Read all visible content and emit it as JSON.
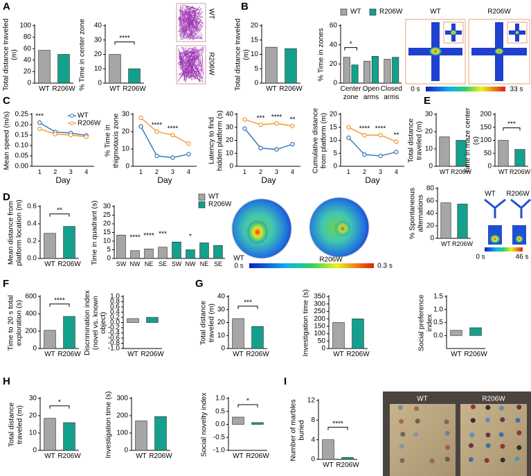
{
  "panel_labels": [
    "A",
    "B",
    "C",
    "D",
    "E",
    "F",
    "G",
    "H",
    "I"
  ],
  "images": {
    "open_field": [
      "WT",
      "R206W"
    ],
    "plus_maze": [
      "WT",
      "R206W"
    ],
    "plus_maze_scale": [
      "0 s",
      "33 s"
    ],
    "water_maze": [
      "WT",
      "R206W"
    ],
    "water_maze_scale": [
      "0 s",
      "0.3 s"
    ],
    "y_maze": [
      "WT",
      "R206W"
    ],
    "y_maze_scale": [
      "0 s",
      "46 s"
    ],
    "marbles": [
      "WT",
      "R206W"
    ]
  },
  "chart_data": [
    {
      "type": "bar",
      "ylabel": "Total distance traveled (m)",
      "categories": [
        "WT",
        "R206W"
      ],
      "values": [
        57,
        50
      ],
      "colors": [
        "#a6a6a6",
        "#14a08c"
      ],
      "ylim": [
        0,
        100
      ],
      "yticks": [
        0,
        20,
        40,
        60,
        80,
        100
      ]
    },
    {
      "type": "bar",
      "ylabel": "% Time in center zone",
      "categories": [
        "WT",
        "R206W"
      ],
      "values": [
        20,
        10
      ],
      "colors": [
        "#a6a6a6",
        "#14a08c"
      ],
      "ylim": [
        0,
        40
      ],
      "yticks": [
        0,
        10,
        20,
        30,
        40
      ],
      "bracket": "****"
    },
    {
      "type": "bar",
      "ylabel": "Total distance traveled (m)",
      "categories": [
        "WT",
        "R206W"
      ],
      "values": [
        12.5,
        12
      ],
      "colors": [
        "#a6a6a6",
        "#14a08c"
      ],
      "ylim": [
        0,
        20
      ],
      "yticks": [
        0,
        5,
        10,
        15,
        20
      ]
    },
    {
      "type": "bar",
      "ylabel": "% Time in zones",
      "categories": [
        "Center zone",
        "Open arms",
        "Closed arms"
      ],
      "series": [
        {
          "name": "WT",
          "color": "#a6a6a6",
          "values": [
            27,
            23,
            25
          ]
        },
        {
          "name": "R206W",
          "color": "#14a08c",
          "values": [
            19,
            28,
            27
          ]
        }
      ],
      "ylim": [
        0,
        60
      ],
      "yticks": [
        0,
        20,
        40,
        60
      ],
      "annotations": [
        "*",
        null,
        null
      ],
      "legend": "top"
    },
    {
      "type": "line",
      "ylabel": "Mean speed (m/s)",
      "xlabel": "Day",
      "categories": [
        "1",
        "2",
        "3",
        "4"
      ],
      "series": [
        {
          "name": "WT",
          "color": "#2e75b6",
          "values": [
            0.21,
            0.165,
            0.16,
            0.148
          ]
        },
        {
          "name": "R206W",
          "color": "#f0962e",
          "values": [
            0.18,
            0.155,
            0.15,
            0.142
          ]
        }
      ],
      "ylim": [
        0,
        0.25
      ],
      "yticks": [
        {
          "value": 0,
          "label": "0.00"
        },
        0.05,
        {
          "value": 0.1,
          "label": "0.10"
        },
        0.15,
        {
          "value": 0.2,
          "label": "0.20"
        },
        0.25
      ],
      "annotations": [
        "***",
        null,
        null,
        null
      ],
      "legend": "upper right"
    },
    {
      "type": "line",
      "ylabel": "% Time in thigmotaxis zone",
      "xlabel": "Day",
      "categories": [
        "1",
        "2",
        "3",
        "4"
      ],
      "series": [
        {
          "name": "WT",
          "color": "#2e75b6",
          "values": [
            23,
            6,
            5,
            7
          ]
        },
        {
          "name": "R206W",
          "color": "#f0962e",
          "values": [
            28,
            20,
            18,
            13
          ]
        }
      ],
      "ylim": [
        0,
        30
      ],
      "yticks": [
        0,
        10,
        20,
        30
      ],
      "annotations": [
        null,
        "****",
        "****",
        null
      ]
    },
    {
      "type": "line",
      "ylabel": "Latency to find hidden platform (s)",
      "xlabel": "Day",
      "categories": [
        "1",
        "2",
        "3",
        "4"
      ],
      "series": [
        {
          "name": "WT",
          "color": "#2e75b6",
          "values": [
            29,
            14,
            13,
            17
          ]
        },
        {
          "name": "R206W",
          "color": "#f0962e",
          "values": [
            36,
            32,
            33,
            31
          ]
        }
      ],
      "ylim": [
        0,
        40
      ],
      "yticks": [
        0,
        10,
        20,
        30,
        40
      ],
      "annotations": [
        null,
        "***",
        "****",
        "**"
      ]
    },
    {
      "type": "line",
      "ylabel": "Cumulative distance from platform (m)",
      "xlabel": "Day",
      "categories": [
        "1",
        "2",
        "3",
        "4"
      ],
      "series": [
        {
          "name": "WT",
          "color": "#2e75b6",
          "values": [
            11,
            4.5,
            4,
            5.5
          ]
        },
        {
          "name": "R206W",
          "color": "#f0962e",
          "values": [
            15,
            12,
            12,
            9.5
          ]
        }
      ],
      "ylim": [
        0,
        20
      ],
      "yticks": [
        0,
        5,
        10,
        15,
        20
      ],
      "annotations": [
        null,
        "****",
        "****",
        "**"
      ]
    },
    {
      "type": "bar",
      "ylabel": "Total distance traveled (m)",
      "categories": [
        "WT",
        "R206W"
      ],
      "values": [
        17,
        15
      ],
      "colors": [
        "#a6a6a6",
        "#14a08c"
      ],
      "ylim": [
        0,
        30
      ],
      "yticks": [
        0,
        10,
        20,
        30
      ]
    },
    {
      "type": "bar",
      "ylabel": "Time in maze center (s)",
      "categories": [
        "WT",
        "R206W"
      ],
      "values": [
        100,
        65
      ],
      "colors": [
        "#a6a6a6",
        "#14a08c"
      ],
      "ylim": [
        0,
        200
      ],
      "yticks": [
        0,
        50,
        100,
        150,
        200
      ],
      "bracket": "***"
    },
    {
      "type": "bar",
      "ylabel": "Mean distance from platform location (m)",
      "categories": [
        "WT",
        "R206W"
      ],
      "values": [
        0.29,
        0.37
      ],
      "colors": [
        "#a6a6a6",
        "#14a08c"
      ],
      "ylim": [
        0,
        0.6
      ],
      "yticks": [
        {
          "value": 0,
          "label": "0.0"
        },
        0.2,
        0.4,
        0.6
      ],
      "bracket": "**"
    },
    {
      "type": "bar",
      "ylabel": "Time in quadrant (s)",
      "categories": [
        "SW",
        "NW",
        "NE",
        "SE",
        "SW",
        "NW",
        "NE",
        "SE"
      ],
      "series": [
        {
          "name": "WT",
          "color": "#a6a6a6",
          "values": [
            13.5,
            4.5,
            5.5,
            6.5,
            null,
            null,
            null,
            null
          ]
        },
        {
          "name": "R206W",
          "color": "#14a08c",
          "values": [
            null,
            null,
            null,
            null,
            9.5,
            5,
            9,
            7.5
          ]
        }
      ],
      "ylim": [
        0,
        30
      ],
      "yticks": [
        0,
        5,
        10,
        15,
        20,
        25,
        30
      ],
      "annotations": [
        null,
        "****",
        "****",
        "***",
        null,
        "*",
        null,
        null
      ],
      "legend": "upper right"
    },
    {
      "type": "bar",
      "ylabel": "% Spontaneous alternations",
      "categories": [
        "WT",
        "R206W"
      ],
      "values": [
        57,
        55
      ],
      "colors": [
        "#a6a6a6",
        "#14a08c"
      ],
      "ylim": [
        0,
        80
      ],
      "yticks": [
        0,
        20,
        40,
        60,
        80
      ]
    },
    {
      "type": "bar",
      "ylabel": "Time to 20 s total exploration (s)",
      "categories": [
        "WT",
        "R206W"
      ],
      "values": [
        210,
        370
      ],
      "colors": [
        "#a6a6a6",
        "#14a08c"
      ],
      "ylim": [
        0,
        600
      ],
      "yticks": [
        0,
        200,
        400,
        600
      ],
      "bracket": "****"
    },
    {
      "type": "bar",
      "ylabel": "Discrimination index (novel vs. known object)",
      "categories": [
        "WT",
        "R206W"
      ],
      "values": [
        0.15,
        0.2
      ],
      "colors": [
        "#a6a6a6",
        "#14a08c"
      ],
      "ylim": [
        -1,
        1
      ],
      "yticks": [
        {
          "value": -1,
          "label": "-1.0"
        },
        -0.8,
        -0.6,
        -0.4,
        -0.2,
        {
          "value": 0,
          "label": "0.0"
        },
        0.2,
        0.4,
        0.6,
        0.8,
        {
          "value": 1,
          "label": "1.0"
        }
      ]
    },
    {
      "type": "bar",
      "ylabel": "Total distance traveled (m)",
      "categories": [
        "WT",
        "R206W"
      ],
      "values": [
        23,
        17
      ],
      "colors": [
        "#a6a6a6",
        "#14a08c"
      ],
      "ylim": [
        0,
        40
      ],
      "yticks": [
        0,
        10,
        20,
        30,
        40
      ],
      "bracket": "***"
    },
    {
      "type": "bar",
      "ylabel": "Investigation time (s)",
      "categories": [
        "WT",
        "R206W"
      ],
      "values": [
        175,
        200
      ],
      "colors": [
        "#a6a6a6",
        "#14a08c"
      ],
      "ylim": [
        0,
        350
      ],
      "yticks": [
        0,
        50,
        100,
        150,
        200,
        250,
        300,
        350
      ]
    },
    {
      "type": "bar",
      "ylabel": "Social preference index",
      "categories": [
        "WT",
        "R206W"
      ],
      "values": [
        0.2,
        0.3
      ],
      "colors": [
        "#a6a6a6",
        "#14a08c"
      ],
      "ylim": [
        -0.5,
        1.5
      ],
      "yticks": [
        {
          "value": 0,
          "label": "0.0"
        },
        0.5,
        {
          "value": 1,
          "label": "1.0"
        },
        1.5
      ]
    },
    {
      "type": "bar",
      "ylabel": "Total distance traveled (m)",
      "categories": [
        "WT",
        "R206W"
      ],
      "values": [
        18.5,
        16
      ],
      "colors": [
        "#a6a6a6",
        "#14a08c"
      ],
      "ylim": [
        0,
        30
      ],
      "yticks": [
        0,
        10,
        20,
        30
      ],
      "bracket": "*"
    },
    {
      "type": "bar",
      "ylabel": "Investigation time (s)",
      "categories": [
        "WT",
        "R206W"
      ],
      "values": [
        170,
        195
      ],
      "colors": [
        "#a6a6a6",
        "#14a08c"
      ],
      "ylim": [
        0,
        300
      ],
      "yticks": [
        0,
        100,
        200,
        300
      ]
    },
    {
      "type": "bar",
      "ylabel": "Social novelty index",
      "categories": [
        "WT",
        "R206W"
      ],
      "values": [
        0.28,
        0.07
      ],
      "colors": [
        "#a6a6a6",
        "#14a08c"
      ],
      "ylim": [
        -1,
        1
      ],
      "yticks": [
        {
          "value": -1,
          "label": "-1.0"
        },
        -0.5,
        {
          "value": 0,
          "label": "0.0"
        },
        0.5,
        {
          "value": 1,
          "label": "1.0"
        }
      ],
      "bracket": "*"
    },
    {
      "type": "bar",
      "ylabel": "Number of marbles buried",
      "categories": [
        "WT",
        "R206W"
      ],
      "values": [
        4,
        0.4
      ],
      "colors": [
        "#a6a6a6",
        "#14a08c"
      ],
      "ylim": [
        0,
        12
      ],
      "yticks": [
        0,
        4,
        8,
        12
      ],
      "bracket": "****"
    }
  ]
}
